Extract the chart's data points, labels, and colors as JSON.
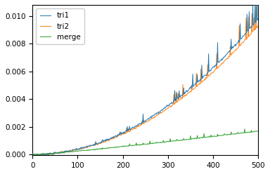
{
  "title": "",
  "xlabel": "",
  "ylabel": "",
  "xlim": [
    0,
    500
  ],
  "ylim": [
    -5e-05,
    0.0108
  ],
  "legend_labels": [
    "tri1",
    "tri2",
    "merge"
  ],
  "colors": [
    "#1f77b4",
    "#ff7f0e",
    "#2ca02c"
  ],
  "n_points": 500,
  "seed": 7,
  "figsize": [
    3.84,
    2.48
  ],
  "dpi": 100,
  "yticks": [
    0.0,
    0.002,
    0.004,
    0.006,
    0.008,
    0.01
  ],
  "xticks": [
    0,
    100,
    200,
    300,
    400,
    500
  ]
}
